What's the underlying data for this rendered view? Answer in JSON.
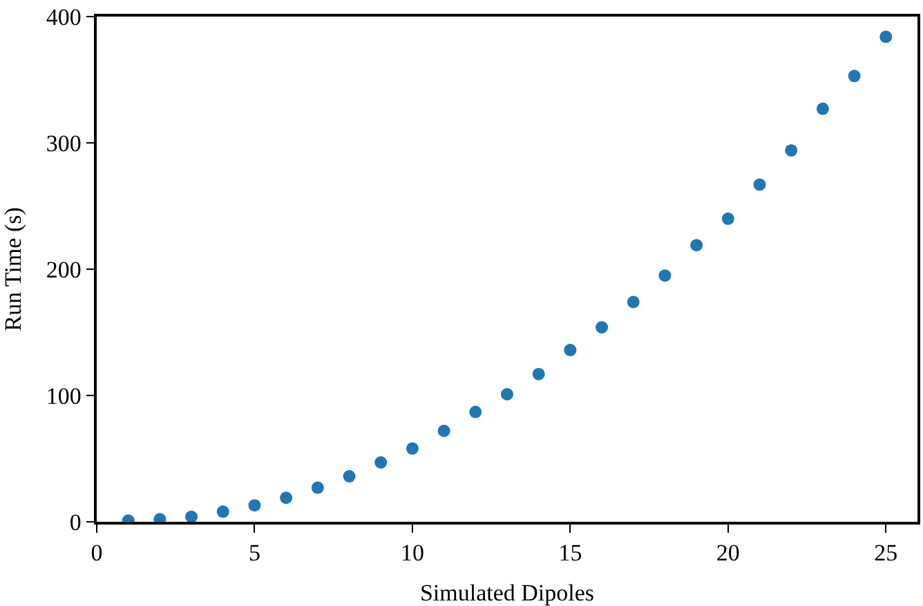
{
  "chart_data": {
    "type": "scatter",
    "xlabel": "Simulated Dipoles",
    "ylabel": "Run Time (s)",
    "x": [
      1,
      2,
      3,
      4,
      5,
      6,
      7,
      8,
      9,
      10,
      11,
      12,
      13,
      14,
      15,
      16,
      17,
      18,
      19,
      20,
      21,
      22,
      23,
      24,
      25
    ],
    "series": [
      {
        "color": "#1f77b4",
        "values": [
          1,
          2,
          4,
          8,
          13,
          19,
          27,
          36,
          47,
          58,
          72,
          87,
          101,
          117,
          136,
          154,
          174,
          195,
          219,
          240,
          267,
          294,
          327,
          353,
          384
        ]
      }
    ],
    "xlim": [
      0,
      26
    ],
    "xticks": [
      0,
      5,
      10,
      15,
      20,
      25
    ],
    "ylim": [
      0,
      400
    ],
    "yticks": [
      0,
      100,
      200,
      300,
      400
    ],
    "marker": "circle"
  }
}
